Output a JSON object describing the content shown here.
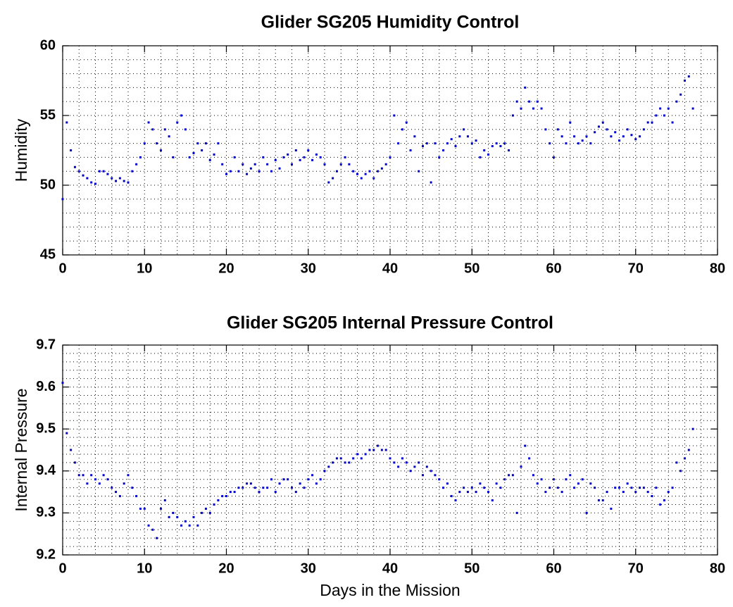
{
  "chart_data": [
    {
      "type": "scatter",
      "title": "Glider SG205 Humidity Control",
      "ylabel": "Humidity",
      "color": "#0000cc",
      "grid": true,
      "minor_grid": true,
      "xlim": [
        0,
        80
      ],
      "xticks": [
        0,
        10,
        20,
        30,
        40,
        50,
        60,
        70,
        80
      ],
      "ylim": [
        45,
        60
      ],
      "yticks": [
        45,
        50,
        55,
        60
      ],
      "x": [
        0,
        0.5,
        1,
        1.5,
        2,
        2.5,
        3,
        3.5,
        4,
        4.5,
        5,
        5.5,
        6,
        6.5,
        7,
        7.5,
        8,
        8.5,
        9,
        9.5,
        10,
        10.5,
        11,
        11.5,
        12,
        12.5,
        13,
        13.5,
        14,
        14.5,
        15,
        15.5,
        16,
        16.5,
        17,
        17.5,
        18,
        18.5,
        19,
        19.5,
        20,
        20.5,
        21,
        21.5,
        22,
        22.5,
        23,
        23.5,
        24,
        24.5,
        25,
        25.5,
        26,
        26.5,
        27,
        27.5,
        28,
        28.5,
        29,
        29.5,
        30,
        30.5,
        31,
        31.5,
        32,
        32.5,
        33,
        33.5,
        34,
        34.5,
        35,
        35.5,
        36,
        36.5,
        37,
        37.5,
        38,
        38.5,
        39,
        39.5,
        40,
        40.5,
        41,
        41.5,
        42,
        42.5,
        43,
        43.5,
        44,
        44.5,
        45,
        45.5,
        46,
        46.5,
        47,
        47.5,
        48,
        48.5,
        49,
        49.5,
        50,
        50.5,
        51,
        51.5,
        52,
        52.5,
        53,
        53.5,
        54,
        54.5,
        55,
        55.5,
        56,
        56.5,
        57,
        57.5,
        58,
        58.5,
        59,
        59.5,
        60,
        60.5,
        61,
        61.5,
        62,
        62.5,
        63,
        63.5,
        64,
        64.5,
        65,
        65.5,
        66,
        66.5,
        67,
        67.5,
        68,
        68.5,
        69,
        69.5,
        70,
        70.5,
        71,
        71.5,
        72,
        72.5,
        73,
        73.5,
        74,
        74.5,
        75,
        75.5,
        76,
        76.5,
        77
      ],
      "values": [
        49,
        54.5,
        52.5,
        51.3,
        51,
        50.7,
        50.5,
        50.2,
        50.1,
        51,
        51,
        50.8,
        50.5,
        50.3,
        50.5,
        50.3,
        50.2,
        51,
        51.5,
        52,
        53,
        54.5,
        54,
        53,
        52.5,
        54,
        53.5,
        52,
        54.5,
        55,
        54,
        52,
        52.3,
        53,
        52.5,
        53,
        51.8,
        52.2,
        53,
        51.5,
        50.8,
        51,
        52,
        51,
        51.5,
        50.8,
        51.2,
        51.5,
        51,
        52,
        51.5,
        51,
        51.8,
        51.2,
        52,
        52.2,
        51.5,
        52.5,
        51.8,
        52,
        52.5,
        51.8,
        52.2,
        52,
        51.5,
        50.2,
        50.5,
        51,
        51.5,
        52,
        51.5,
        51,
        50.8,
        50.5,
        50.8,
        51,
        50.5,
        51,
        51.2,
        51.5,
        52,
        55,
        53,
        54,
        54.5,
        52.5,
        53.5,
        51,
        52.8,
        53,
        50.2,
        53,
        52,
        52.5,
        53,
        53.3,
        52.8,
        53.5,
        54,
        53.5,
        53,
        53.2,
        52,
        52.5,
        52.2,
        52.8,
        53,
        52.8,
        53,
        52.5,
        55,
        56,
        55.5,
        57,
        56,
        55.5,
        56,
        55.5,
        54,
        53,
        52,
        54,
        53.5,
        53,
        54.5,
        53.5,
        53,
        53.2,
        53.5,
        53,
        53.8,
        54.2,
        54.5,
        54,
        53.5,
        53.8,
        53.2,
        53.5,
        54,
        53.6,
        53.3,
        53.5,
        54,
        54.5,
        54.5,
        55,
        55.5,
        55,
        55.5,
        54.5,
        56,
        56.5,
        57.5,
        57.8,
        55.5
      ]
    },
    {
      "type": "scatter",
      "title": "Glider SG205 Internal Pressure Control",
      "ylabel": "Internal Pressure",
      "xlabel": "Days in the Mission",
      "color": "#0000cc",
      "grid": true,
      "minor_grid": true,
      "xlim": [
        0,
        80
      ],
      "xticks": [
        0,
        10,
        20,
        30,
        40,
        50,
        60,
        70,
        80
      ],
      "ylim": [
        9.2,
        9.7
      ],
      "yticks": [
        9.2,
        9.3,
        9.4,
        9.5,
        9.6,
        9.7
      ],
      "x": [
        0,
        0.5,
        1,
        1.5,
        2,
        2.5,
        3,
        3.5,
        4,
        4.5,
        5,
        5.5,
        6,
        6.5,
        7,
        7.5,
        8,
        8.5,
        9,
        9.5,
        10,
        10.5,
        11,
        11.5,
        12,
        12.5,
        13,
        13.5,
        14,
        14.5,
        15,
        15.5,
        16,
        16.5,
        17,
        17.5,
        18,
        18.5,
        19,
        19.5,
        20,
        20.5,
        21,
        21.5,
        22,
        22.5,
        23,
        23.5,
        24,
        24.5,
        25,
        25.5,
        26,
        26.5,
        27,
        27.5,
        28,
        28.5,
        29,
        29.5,
        30,
        30.5,
        31,
        31.5,
        32,
        32.5,
        33,
        33.5,
        34,
        34.5,
        35,
        35.5,
        36,
        36.5,
        37,
        37.5,
        38,
        38.5,
        39,
        39.5,
        40,
        40.5,
        41,
        41.5,
        42,
        42.5,
        43,
        43.5,
        44,
        44.5,
        45,
        45.5,
        46,
        46.5,
        47,
        47.5,
        48,
        48.5,
        49,
        49.5,
        50,
        50.5,
        51,
        51.5,
        52,
        52.5,
        53,
        53.5,
        54,
        54.5,
        55,
        55.5,
        56,
        56.5,
        57,
        57.5,
        58,
        58.5,
        59,
        59.5,
        60,
        60.5,
        61,
        61.5,
        62,
        62.5,
        63,
        63.5,
        64,
        64.5,
        65,
        65.5,
        66,
        66.5,
        67,
        67.5,
        68,
        68.5,
        69,
        69.5,
        70,
        70.5,
        71,
        71.5,
        72,
        72.5,
        73,
        73.5,
        74,
        74.5,
        75,
        75.5,
        76,
        76.5,
        77
      ],
      "values": [
        9.61,
        9.49,
        9.45,
        9.42,
        9.39,
        9.39,
        9.37,
        9.39,
        9.38,
        9.37,
        9.39,
        9.38,
        9.36,
        9.35,
        9.34,
        9.37,
        9.39,
        9.36,
        9.34,
        9.31,
        9.31,
        9.27,
        9.26,
        9.24,
        9.31,
        9.33,
        9.29,
        9.3,
        9.29,
        9.27,
        9.28,
        9.27,
        9.29,
        9.27,
        9.3,
        9.31,
        9.3,
        9.32,
        9.33,
        9.34,
        9.34,
        9.35,
        9.35,
        9.36,
        9.36,
        9.37,
        9.37,
        9.36,
        9.35,
        9.36,
        9.36,
        9.38,
        9.35,
        9.37,
        9.38,
        9.38,
        9.36,
        9.35,
        9.37,
        9.36,
        9.38,
        9.39,
        9.37,
        9.38,
        9.4,
        9.41,
        9.42,
        9.43,
        9.43,
        9.42,
        9.42,
        9.43,
        9.44,
        9.43,
        9.44,
        9.45,
        9.45,
        9.46,
        9.45,
        9.45,
        9.43,
        9.42,
        9.41,
        9.43,
        9.42,
        9.4,
        9.41,
        9.42,
        9.39,
        9.41,
        9.4,
        9.39,
        9.38,
        9.36,
        9.37,
        9.34,
        9.33,
        9.35,
        9.36,
        9.35,
        9.36,
        9.35,
        9.37,
        9.36,
        9.35,
        9.33,
        9.37,
        9.36,
        9.38,
        9.39,
        9.39,
        9.3,
        9.41,
        9.46,
        9.43,
        9.39,
        9.37,
        9.38,
        9.35,
        9.36,
        9.38,
        9.36,
        9.35,
        9.38,
        9.39,
        9.36,
        9.37,
        9.38,
        9.3,
        9.37,
        9.36,
        9.33,
        9.33,
        9.35,
        9.31,
        9.36,
        9.36,
        9.35,
        9.37,
        9.36,
        9.35,
        9.36,
        9.36,
        9.35,
        9.34,
        9.36,
        9.32,
        9.33,
        9.35,
        9.36,
        9.42,
        9.4,
        9.43,
        9.45,
        9.5
      ]
    }
  ]
}
